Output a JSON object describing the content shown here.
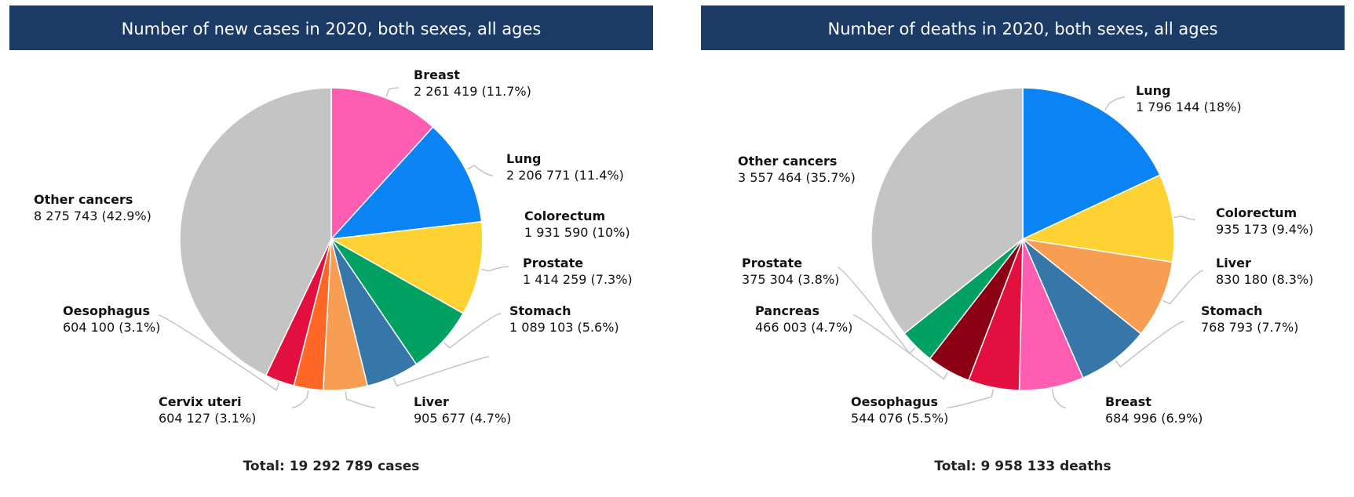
{
  "chart_data": [
    {
      "type": "pie",
      "title": "Number of new cases in 2020, both sexes, all ages",
      "total_label": "Total: 19 292 789 cases",
      "slices": [
        {
          "name": "Breast",
          "value": 2261419,
          "value_text": "2 261 419 (11.7%)",
          "color": "#ff5db1"
        },
        {
          "name": "Lung",
          "value": 2206771,
          "value_text": "2 206 771 (11.4%)",
          "color": "#0a84f5"
        },
        {
          "name": "Colorectum",
          "value": 1931590,
          "value_text": "1 931 590 (10%)",
          "color": "#ffd234"
        },
        {
          "name": "Prostate",
          "value": 1414259,
          "value_text": "1 414 259 (7.3%)",
          "color": "#00a163"
        },
        {
          "name": "Stomach",
          "value": 1089103,
          "value_text": "1 089 103 (5.6%)",
          "color": "#3776a8"
        },
        {
          "name": "Liver",
          "value": 905677,
          "value_text": "905 677 (4.7%)",
          "color": "#f89e52"
        },
        {
          "name": "Cervix uteri",
          "value": 604127,
          "value_text": "604 127 (3.1%)",
          "color": "#ff6726"
        },
        {
          "name": "Oesophagus",
          "value": 604100,
          "value_text": "604 100 (3.1%)",
          "color": "#e3103f"
        },
        {
          "name": "Other cancers",
          "value": 8275743,
          "value_text": "8 275 743 (42.9%)",
          "color": "#c4c4c4"
        }
      ]
    },
    {
      "type": "pie",
      "title": "Number of deaths in 2020, both sexes, all ages",
      "total_label": "Total: 9 958 133 deaths",
      "slices": [
        {
          "name": "Lung",
          "value": 1796144,
          "value_text": "1 796 144 (18%)",
          "color": "#0a84f5"
        },
        {
          "name": "Colorectum",
          "value": 935173,
          "value_text": "935 173 (9.4%)",
          "color": "#ffd234"
        },
        {
          "name": "Liver",
          "value": 830180,
          "value_text": "830 180 (8.3%)",
          "color": "#f89e52"
        },
        {
          "name": "Stomach",
          "value": 768793,
          "value_text": "768 793 (7.7%)",
          "color": "#3776a8"
        },
        {
          "name": "Breast",
          "value": 684996,
          "value_text": "684 996 (6.9%)",
          "color": "#ff5db1"
        },
        {
          "name": "Oesophagus",
          "value": 544076,
          "value_text": "544 076 (5.5%)",
          "color": "#e3103f"
        },
        {
          "name": "Pancreas",
          "value": 466003,
          "value_text": "466 003 (4.7%)",
          "color": "#8b0012"
        },
        {
          "name": "Prostate",
          "value": 375304,
          "value_text": "375 304 (3.8%)",
          "color": "#00a163"
        },
        {
          "name": "Other cancers",
          "value": 3557464,
          "value_text": "3 557 464 (35.7%)",
          "color": "#c4c4c4"
        }
      ]
    }
  ],
  "header_color": "#1b3a66"
}
